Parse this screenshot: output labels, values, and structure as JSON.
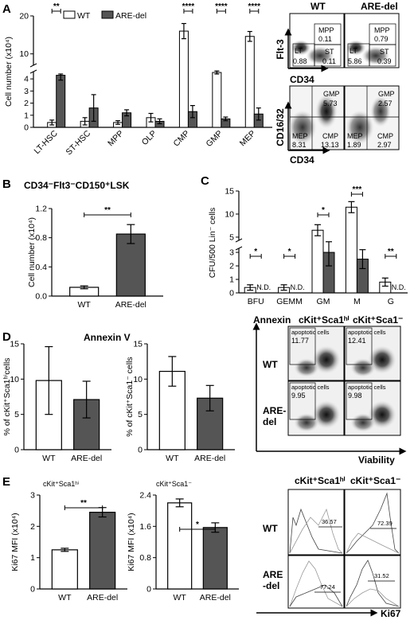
{
  "panels": {
    "A": {
      "label": "A",
      "legend": [
        "WT",
        "ARE-del"
      ],
      "chart_data": {
        "type": "bar",
        "ylabel": "Cell number (x10⁴)",
        "yticks_low": [
          "0",
          "1",
          "2",
          "3",
          "4"
        ],
        "yticks_high": [
          "10",
          "20"
        ],
        "categories": [
          "LT-HSC",
          "ST-HSC",
          "MPP",
          "OLP",
          "CMP",
          "GMP",
          "MEP"
        ],
        "series": [
          {
            "name": "WT",
            "values": [
              0.4,
              0.5,
              0.4,
              0.8,
              16,
              5.1,
              14.6
            ],
            "err": [
              0.2,
              0.3,
              0.15,
              0.35,
              2.0,
              0.4,
              1.3
            ]
          },
          {
            "name": "ARE-del",
            "values": [
              4.3,
              1.6,
              1.2,
              0.5,
              1.3,
              0.7,
              1.1
            ],
            "err": [
              0.4,
              1.1,
              0.25,
              0.2,
              0.5,
              0.15,
              0.5
            ]
          }
        ],
        "significance": [
          {
            "category": "LT-HSC",
            "label": "**"
          },
          {
            "category": "CMP",
            "label": "****"
          },
          {
            "category": "GMP",
            "label": "****"
          },
          {
            "category": "MEP",
            "label": "****"
          }
        ]
      },
      "flow": {
        "col_headers": [
          "WT",
          "ARE-del"
        ],
        "top_axis_y": "Flt-3",
        "top_axis_x": "CD34",
        "bottom_axis_y": "CD16/32",
        "bottom_axis_x": "CD34",
        "top_wt": {
          "mpp_label": "MPP",
          "mpp_val": "0.11",
          "lt_label": "LT",
          "lt_val": "0.88",
          "st_label": "ST",
          "st_val": "0.11"
        },
        "top_del": {
          "mpp_label": "MPP",
          "mpp_val": "0.79",
          "lt_label": "LT",
          "lt_val": "5.86",
          "st_label": "ST",
          "st_val": "0.39"
        },
        "bot_wt": {
          "gmp_label": "GMP",
          "gmp_val": "5.73",
          "mep_label": "MEP",
          "mep_val": "8.31",
          "cmp_label": "CMP",
          "cmp_val": "13.13"
        },
        "bot_del": {
          "gmp_label": "GMP",
          "gmp_val": "2.57",
          "mep_label": "MEP",
          "mep_val": "1.89",
          "cmp_label": "CMP",
          "cmp_val": "2.97"
        }
      }
    },
    "B": {
      "label": "B",
      "title": "CD34⁻Flt3⁻CD150⁺LSK",
      "chart_data": {
        "type": "bar",
        "ylabel": "Cell number (x10⁴)",
        "yticks": [
          "0.0",
          "0.4",
          "0.8",
          "1.2"
        ],
        "ylim": [
          0,
          1.2
        ],
        "categories": [
          "WT",
          "ARE-del"
        ],
        "values": [
          0.12,
          0.85
        ],
        "err": [
          0.02,
          0.13
        ],
        "significance": "**"
      }
    },
    "C": {
      "label": "C",
      "chart_data": {
        "type": "bar",
        "ylabel": "CFU/500 Lin⁻ cells",
        "yticks": [
          "0",
          "1",
          "2",
          "3",
          "5",
          "10",
          "15"
        ],
        "categories": [
          "BFU",
          "GEMM",
          "GM",
          "M",
          "G"
        ],
        "series": [
          {
            "name": "WT",
            "values": [
              0.4,
              0.4,
              6.5,
              11.5,
              0.8
            ],
            "err": [
              0.2,
              0.2,
              1.2,
              1.2,
              0.3
            ]
          },
          {
            "name": "ARE-del",
            "values": [
              null,
              null,
              3.0,
              2.5,
              null
            ],
            "err": [
              0,
              0,
              1.0,
              0.7,
              0
            ]
          }
        ],
        "nd_label": "N.D.",
        "significance": [
          "*",
          "*",
          "*",
          "***",
          "**"
        ]
      }
    },
    "D": {
      "label": "D",
      "title": "Annexin V",
      "chart1": {
        "type": "bar",
        "ylabel": "% of cKit⁺Sca1ʰⁱcells",
        "yticks": [
          "0",
          "5",
          "10",
          "15"
        ],
        "ylim": [
          0,
          15
        ],
        "categories": [
          "WT",
          "ARE-del"
        ],
        "values": [
          9.8,
          7.1
        ],
        "err": [
          4.8,
          2.6
        ]
      },
      "chart2": {
        "type": "bar",
        "ylabel": "% of cKit⁺Sca1⁻ cells",
        "yticks": [
          "0",
          "5",
          "10",
          "15"
        ],
        "ylim": [
          0,
          15
        ],
        "categories": [
          "WT",
          "ARE-del"
        ],
        "values": [
          11.1,
          7.3
        ],
        "err": [
          2.1,
          1.8
        ]
      },
      "flow": {
        "axis_y": "Annexin",
        "axis_x": "Viability",
        "col1": "cKit⁺Sca1ʰⁱ",
        "col2": "cKit⁺Sca1⁻",
        "row1": "WT",
        "row2a": "ARE-",
        "row2b": "del",
        "gate_label": "apoptotic cells",
        "vals": [
          "11.77",
          "12.41",
          "9.95",
          "9.98"
        ]
      }
    },
    "E": {
      "label": "E",
      "chart1": {
        "type": "bar",
        "title": "cKit⁺Sca1ʰⁱ",
        "ylabel": "Ki67 MFI (x10⁴)",
        "yticks": [
          "0",
          "1",
          "2",
          "3"
        ],
        "ylim": [
          0,
          3
        ],
        "categories": [
          "WT",
          "ARE-del"
        ],
        "values": [
          1.25,
          2.45
        ],
        "err": [
          0.05,
          0.15
        ],
        "significance": "**"
      },
      "chart2": {
        "type": "bar",
        "title": "cKit⁺Sca1⁻",
        "ylabel": "Ki67 MFI (x10⁴)",
        "yticks": [
          "0",
          "0.8",
          "1.6",
          "2.4"
        ],
        "ylim": [
          0,
          2.4
        ],
        "categories": [
          "WT",
          "ARE-del"
        ],
        "values": [
          2.2,
          1.57
        ],
        "err": [
          0.1,
          0.12
        ],
        "significance": "*"
      },
      "flow": {
        "col1": "cKit⁺Sca1ʰⁱ",
        "col2": "cKit⁺Sca1⁻",
        "row1": "WT",
        "row2a": "ARE",
        "row2b": "-del",
        "axis_x": "Ki67",
        "vals": [
          "36.57",
          "72.39",
          "77.24",
          "31.52"
        ]
      }
    }
  }
}
